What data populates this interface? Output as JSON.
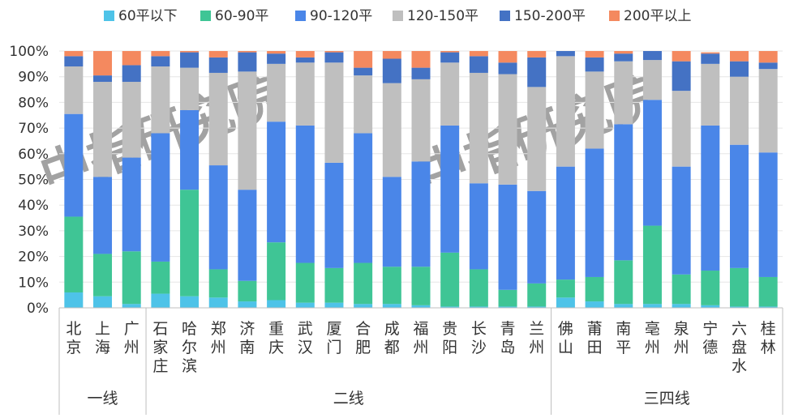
{
  "chart_data": {
    "type": "bar",
    "stacked": true,
    "percent": true,
    "title": "",
    "xlabel": "",
    "ylabel": "",
    "ylim": [
      0,
      100
    ],
    "y_ticks": [
      "0%",
      "10%",
      "20%",
      "30%",
      "40%",
      "50%",
      "60%",
      "70%",
      "80%",
      "90%",
      "100%"
    ],
    "legend_position": "top",
    "watermark": "中指研究院",
    "categories": [
      "北京",
      "上海",
      "广州",
      "石家庄",
      "哈尔滨",
      "郑州",
      "济南",
      "重庆",
      "武汉",
      "厦门",
      "合肥",
      "成都",
      "福州",
      "贵阳",
      "长沙",
      "青岛",
      "兰州",
      "佛山",
      "莆田",
      "南平",
      "亳州",
      "泉州",
      "宁德",
      "六盘水",
      "桂林"
    ],
    "groups": [
      {
        "name": "一线",
        "count": 3
      },
      {
        "name": "二线",
        "count": 14
      },
      {
        "name": "三四线",
        "count": 8
      }
    ],
    "series": [
      {
        "name": "60平以下",
        "color": "#4ec3e8",
        "values": [
          6,
          4.5,
          1.5,
          5.5,
          4.5,
          4,
          2.5,
          3,
          2,
          2,
          1.5,
          1.5,
          1,
          0.5,
          0.5,
          0.5,
          0.5,
          4,
          2.5,
          1.5,
          1.5,
          1.5,
          1,
          0.5,
          0.5
        ]
      },
      {
        "name": "60-90平",
        "color": "#3fc595",
        "values": [
          29.5,
          16.5,
          20.5,
          12.5,
          41.5,
          11,
          8,
          22.5,
          15.5,
          13.5,
          16,
          14.5,
          15,
          21,
          14.5,
          6.5,
          9,
          7,
          9.5,
          17,
          30.5,
          11.5,
          13.5,
          15,
          11.5
        ]
      },
      {
        "name": "90-120平",
        "color": "#4a86e8",
        "values": [
          40,
          30,
          36.5,
          50,
          31,
          40.5,
          35.5,
          47,
          53.5,
          41,
          50.5,
          35,
          41,
          49.5,
          33.5,
          41,
          36,
          44,
          50,
          53,
          49,
          42,
          56.5,
          48,
          48.5
        ]
      },
      {
        "name": "120-150平",
        "color": "#bfbfbf",
        "values": [
          18.5,
          37,
          29.5,
          26,
          16.5,
          36,
          46,
          22.5,
          24.5,
          39,
          22.5,
          36.5,
          32,
          24.5,
          43,
          43,
          40.5,
          43,
          30,
          24.5,
          15.5,
          29.5,
          24,
          26.5,
          32.5
        ]
      },
      {
        "name": "150-200平",
        "color": "#4472c4",
        "values": [
          4,
          2.5,
          6.5,
          4,
          6,
          6,
          7.5,
          4,
          2,
          4,
          3,
          9.5,
          4.5,
          4,
          6.5,
          4.5,
          11.5,
          2,
          5.5,
          3,
          3.5,
          11.5,
          4,
          6,
          2.5
        ]
      },
      {
        "name": "200平以上",
        "color": "#f4895f",
        "values": [
          2,
          9.5,
          5.5,
          2,
          0.5,
          2.5,
          0.5,
          1,
          2.5,
          0.5,
          6.5,
          3,
          6.5,
          0.5,
          2,
          4.5,
          2.5,
          0,
          2.5,
          1,
          0,
          4,
          0.5,
          4,
          4.5
        ]
      }
    ]
  }
}
